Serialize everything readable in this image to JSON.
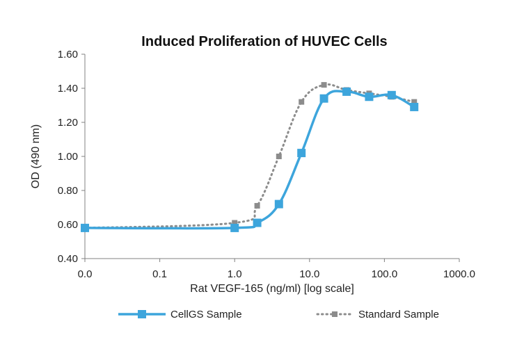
{
  "chart_data": {
    "type": "line",
    "title": "Induced Proliferation of HUVEC Cells",
    "xlabel": "Rat VEGF-165 (ng/ml) [log scale]",
    "ylabel": "OD (490 nm)",
    "x_scale": "log",
    "x_ticks": [
      "0.0",
      "0.1",
      "1.0",
      "10.0",
      "100.0",
      "1000.0"
    ],
    "y_ticks": [
      "0.40",
      "0.60",
      "0.80",
      "1.00",
      "1.20",
      "1.40",
      "1.60"
    ],
    "xlim": [
      0.01,
      1000
    ],
    "ylim": [
      0.4,
      1.6
    ],
    "grid": false,
    "legend_position": "bottom",
    "series": [
      {
        "name": "CellGS Sample",
        "color": "#3da5dc",
        "style": "solid",
        "marker": "square",
        "x": [
          0.01,
          1.0,
          2.0,
          3.9,
          7.8,
          15.6,
          31.3,
          62.5,
          125,
          250
        ],
        "y": [
          0.58,
          0.58,
          0.61,
          0.72,
          1.02,
          1.34,
          1.38,
          1.35,
          1.36,
          1.29
        ]
      },
      {
        "name": "Standard Sample",
        "color": "#8c8c8c",
        "style": "dotted",
        "marker": "square",
        "x": [
          0.01,
          1.0,
          2.0,
          3.9,
          7.8,
          15.6,
          31.3,
          62.5,
          125,
          250
        ],
        "y": [
          0.58,
          0.61,
          0.71,
          1.0,
          1.32,
          1.42,
          1.39,
          1.37,
          1.35,
          1.32
        ]
      }
    ]
  }
}
